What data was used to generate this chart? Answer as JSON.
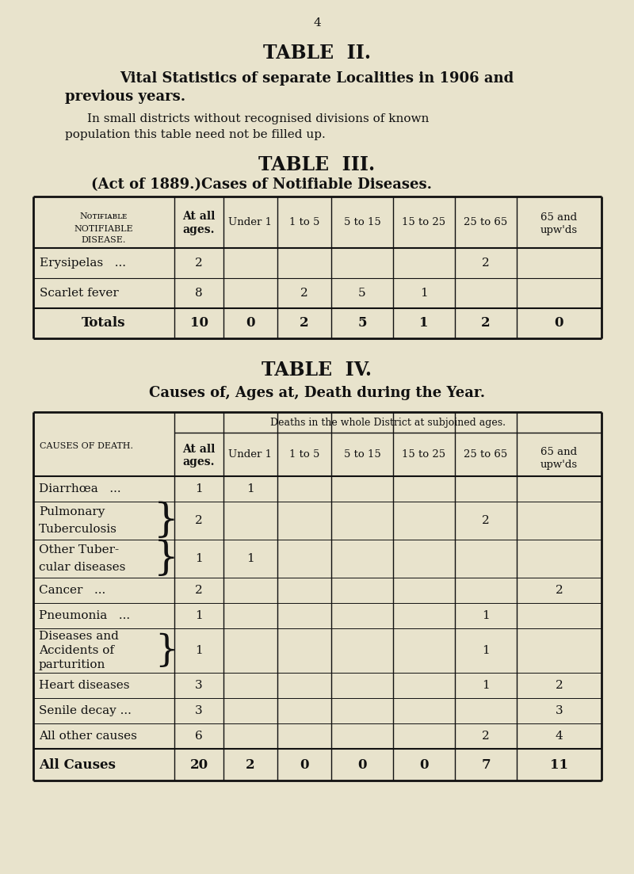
{
  "bg_color": "#e8e3cc",
  "page_num": "4",
  "table2_title": "TABLE  II.",
  "table2_sub1": "Vital Statistics of separate Localities in 1906 and",
  "table2_sub2": "previous years.",
  "table2_body1": "In small districts without recognised divisions of known",
  "table2_body2": "population this table need not be filled up.",
  "table3_title": "TABLE  III.",
  "table3_sub_left": "(Act of 1889.)",
  "table3_sub_right": "Cases of Notifiable Diseases.",
  "table4_title": "TABLE  IV.",
  "table4_sub": "Causes of, Ages at, Death during the Year.",
  "table4_span": "Deaths in the whole District at subjoined ages."
}
